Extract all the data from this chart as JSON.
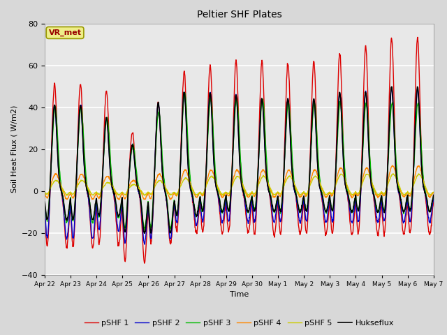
{
  "title": "Peltier SHF Plates",
  "xlabel": "Time",
  "ylabel": "Soil Heat Flux ( W/m2)",
  "ylim": [
    -40,
    80
  ],
  "xlim_days": [
    0,
    15
  ],
  "bg_color": "#d8d8d8",
  "plot_bg_color": "#e8e8e8",
  "grid_color": "white",
  "xtick_labels": [
    "Apr 22",
    "Apr 23",
    "Apr 24",
    "Apr 25",
    "Apr 26",
    "Apr 27",
    "Apr 28",
    "Apr 29",
    "Apr 30",
    "May 1",
    "May 2",
    "May 3",
    "May 4",
    "May 5",
    "May 6",
    "May 7"
  ],
  "series_colors": {
    "pSHF 1": "#dd0000",
    "pSHF 2": "#0000cc",
    "pSHF 3": "#00bb00",
    "pSHF 4": "#ff8800",
    "pSHF 5": "#cccc00",
    "Hukseflux": "#000000"
  },
  "annotation_text": "VR_met",
  "annotation_color": "#990000",
  "annotation_bg": "#eeee88",
  "annotation_border": "#999900",
  "day_peak1": [
    51,
    51,
    48,
    28,
    42,
    57,
    60,
    62,
    62,
    61,
    62,
    66,
    69,
    73,
    73
  ],
  "day_trough1": [
    -27,
    -27,
    -26,
    -34,
    -25,
    -20,
    -20,
    -20,
    -21,
    -21,
    -21,
    -21,
    -21,
    -21,
    -21
  ],
  "day_peak2": [
    41,
    41,
    35,
    22,
    42,
    47,
    47,
    46,
    44,
    44,
    44,
    47,
    47,
    49,
    49
  ],
  "day_trough2": [
    -23,
    -23,
    -19,
    -25,
    -23,
    -16,
    -15,
    -15,
    -15,
    -15,
    -15,
    -15,
    -15,
    -15,
    -15
  ],
  "day_peak3": [
    40,
    40,
    35,
    22,
    38,
    47,
    44,
    44,
    44,
    42,
    42,
    42,
    42,
    42,
    42
  ],
  "day_trough3": [
    -15,
    -15,
    -13,
    -18,
    -18,
    -12,
    -10,
    -10,
    -10,
    -10,
    -10,
    -10,
    -10,
    -10,
    -10
  ],
  "day_peak4": [
    8,
    8,
    7,
    5,
    8,
    10,
    10,
    10,
    10,
    10,
    10,
    11,
    11,
    12,
    12
  ],
  "day_trough4": [
    -4,
    -4,
    -4,
    -4,
    -4,
    -3,
    -3,
    -3,
    -3,
    -3,
    -3,
    -3,
    -3,
    -3,
    -3
  ],
  "day_peak5": [
    5,
    5,
    4,
    3,
    5,
    6,
    7,
    7,
    7,
    7,
    7,
    8,
    8,
    8,
    8
  ],
  "day_trough5": [
    -2,
    -2,
    -2,
    -2,
    -2,
    -2,
    -2,
    -2,
    -2,
    -2,
    -2,
    -2,
    -2,
    -2,
    -2
  ],
  "day_peakH": [
    41,
    41,
    35,
    22,
    42,
    47,
    47,
    46,
    44,
    44,
    44,
    47,
    47,
    50,
    50
  ],
  "day_troughH": [
    -14,
    -14,
    -12,
    -20,
    -20,
    -12,
    -10,
    -10,
    -10,
    -10,
    -10,
    -10,
    -10,
    -10,
    -10
  ]
}
